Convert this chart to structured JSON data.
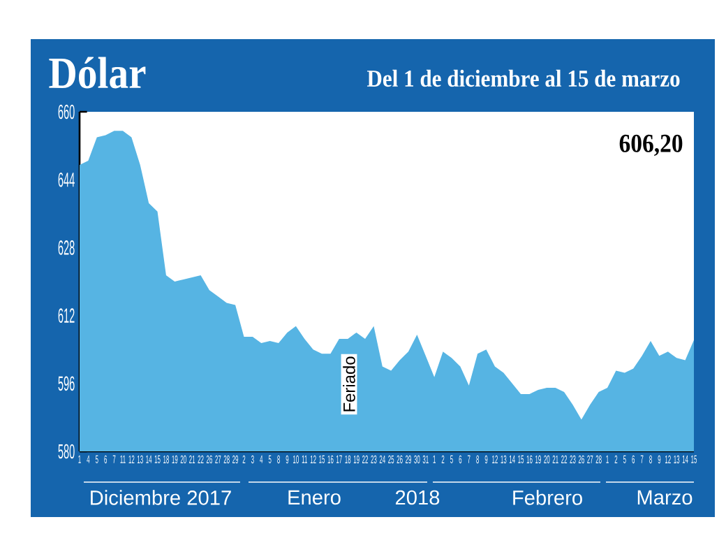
{
  "chart_data": {
    "type": "area",
    "title": "Dólar",
    "subtitle": "Del 1 de diciembre al 15 de marzo",
    "categories": [
      "1",
      "4",
      "5",
      "6",
      "7",
      "11",
      "12",
      "13",
      "14",
      "15",
      "18",
      "19",
      "20",
      "21",
      "22",
      "26",
      "27",
      "28",
      "29",
      "2",
      "3",
      "4",
      "5",
      "8",
      "9",
      "10",
      "11",
      "12",
      "15",
      "16",
      "17",
      "18",
      "19",
      "22",
      "23",
      "24",
      "25",
      "26",
      "29",
      "30",
      "31",
      "1",
      "2",
      "5",
      "6",
      "7",
      "8",
      "9",
      "12",
      "13",
      "14",
      "15",
      "16",
      "19",
      "20",
      "21",
      "22",
      "23",
      "26",
      "27",
      "28",
      "1",
      "2",
      "5",
      "6",
      "7",
      "8",
      "9",
      "12",
      "13",
      "14",
      "15"
    ],
    "values": [
      647.5,
      648.5,
      654,
      654.5,
      655.5,
      655.5,
      654,
      647.5,
      638.5,
      636.5,
      621.5,
      620,
      620.5,
      621,
      621.5,
      618,
      616.5,
      615,
      614.5,
      607,
      607,
      605.5,
      606,
      605.5,
      608,
      609.5,
      606.5,
      604,
      603,
      603,
      606.5,
      606.5,
      608,
      606.5,
      609.5,
      600,
      599,
      601.5,
      603.5,
      607.5,
      602.5,
      597.5,
      603.5,
      602,
      600,
      595.5,
      603,
      604,
      600,
      598.5,
      596,
      593.5,
      593.5,
      594.5,
      595,
      595,
      594,
      591,
      587.5,
      591,
      594,
      595,
      599,
      598.5,
      599.5,
      602.5,
      606,
      602.5,
      603.5,
      602,
      601.5,
      606.2
    ],
    "color": "#56b4e3",
    "ylim": [
      580,
      660
    ],
    "yticks": [
      580,
      596,
      612,
      628,
      644,
      660
    ],
    "annotations": [
      "606,20",
      "Feriado",
      "Diciembre 2017",
      "Enero",
      "2018",
      "Febrero",
      "Marzo"
    ]
  }
}
